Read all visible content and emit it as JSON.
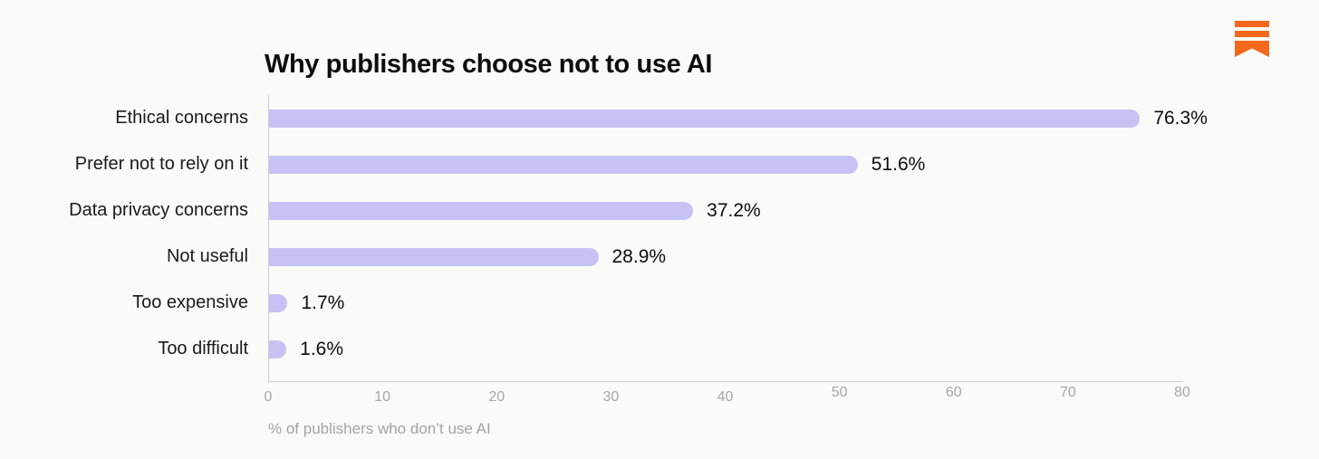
{
  "page": {
    "background": "#fafaf9"
  },
  "logo": {
    "name": "bookmark-logo",
    "color": "#f4681c"
  },
  "chart_data": {
    "type": "bar",
    "orientation": "horizontal",
    "title": "Why publishers choose not to use AI",
    "categories": [
      "Ethical concerns",
      "Prefer not to rely on it",
      "Data privacy concerns",
      "Not useful",
      "Too expensive",
      "Too difficult"
    ],
    "values": [
      76.3,
      51.6,
      37.2,
      28.9,
      1.7,
      1.6
    ],
    "value_labels": [
      "76.3%",
      "51.6%",
      "37.2%",
      "28.9%",
      "1.7%",
      "1.6%"
    ],
    "xlabel": "% of publishers who don’t use AI",
    "xlim": [
      0,
      80
    ],
    "xticks": [
      0,
      10,
      20,
      30,
      40,
      50,
      60,
      70,
      80
    ],
    "grid": false,
    "legend": false,
    "bar_color": "#c6c3f4",
    "axis_color": "#cccccc",
    "tick_color": "#a6a6a6",
    "label_color": "#1a1a1a",
    "value_color": "#0d0d0d"
  }
}
